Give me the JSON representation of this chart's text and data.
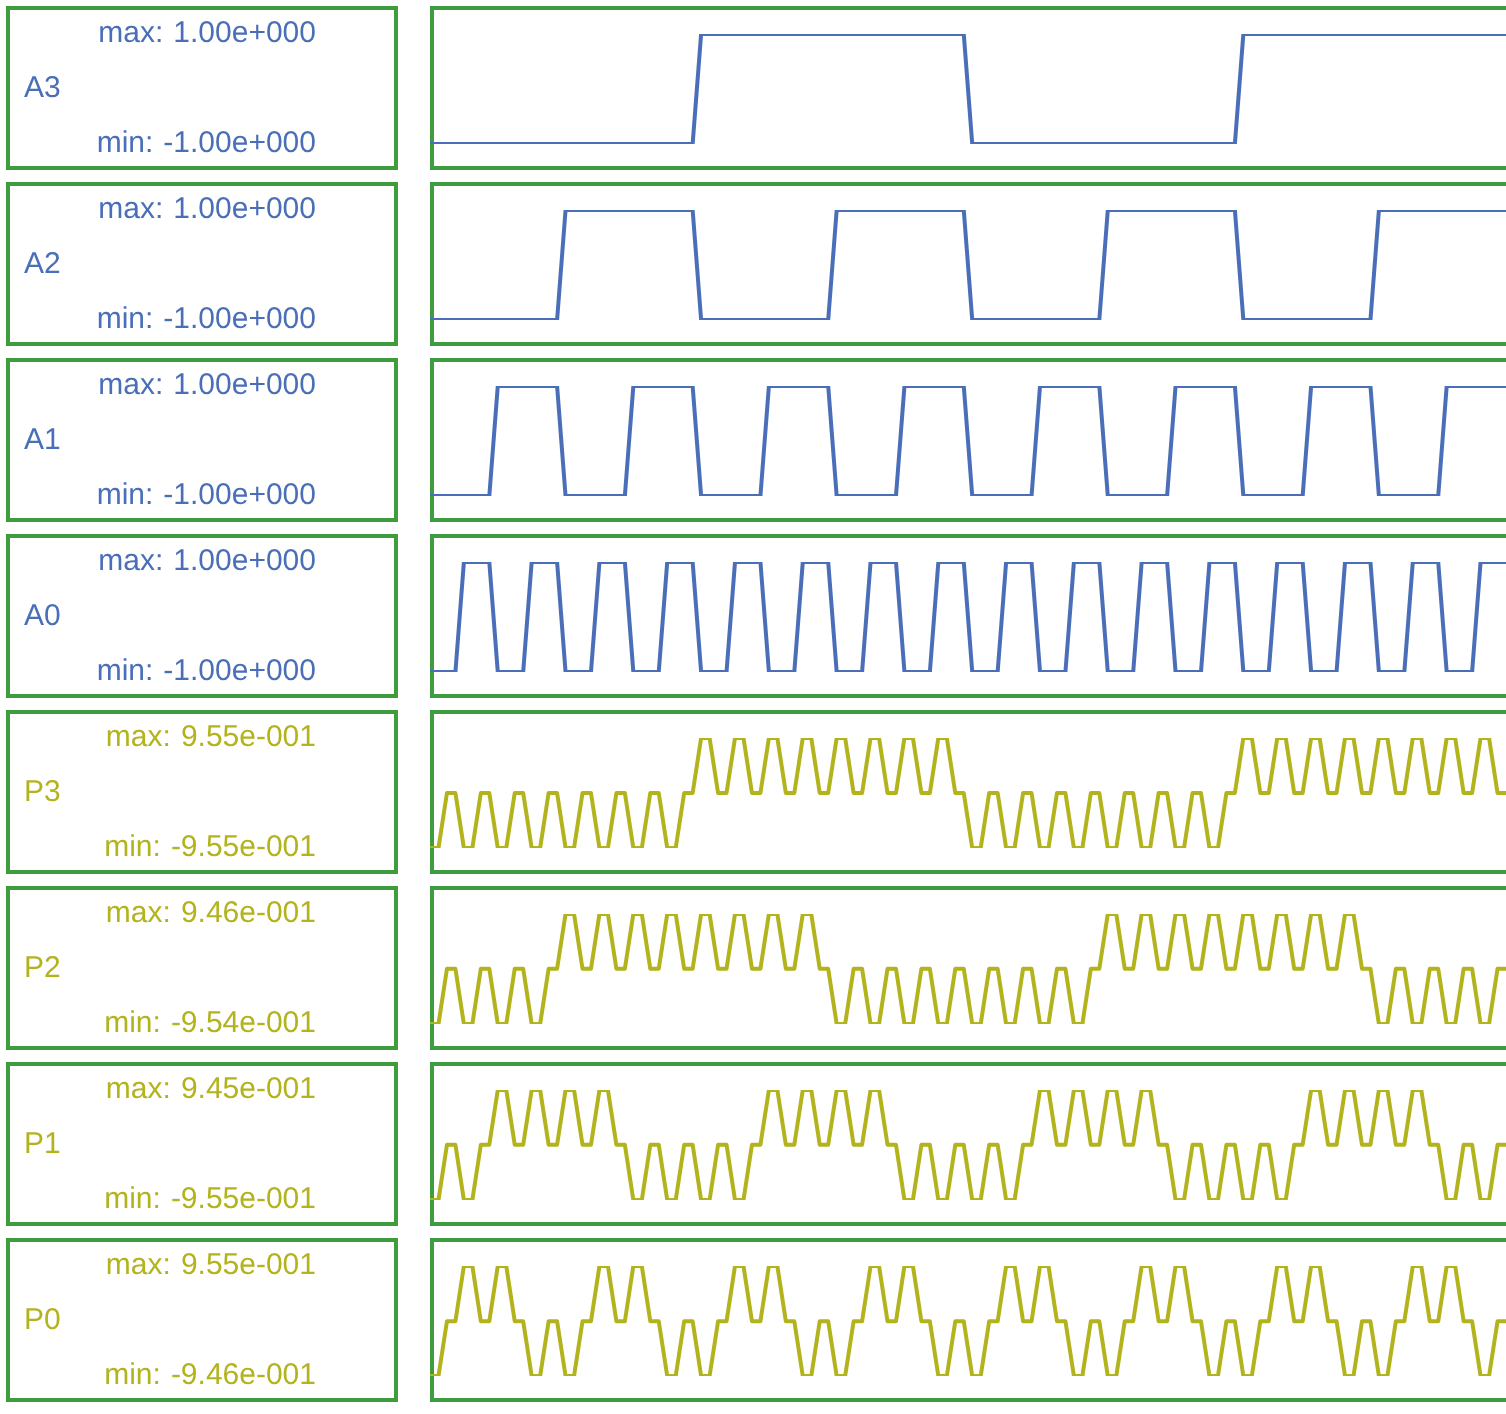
{
  "chart_data": [
    {
      "type": "line",
      "tick_labels": "y",
      "grid": false,
      "legend": false,
      "categories": [
        null,
        null,
        null,
        null,
        null,
        null,
        null,
        null,
        null,
        null,
        null,
        null,
        null,
        null,
        null,
        null,
        null,
        null,
        null,
        null,
        null,
        null,
        null,
        null,
        null,
        null,
        null,
        null,
        null,
        null,
        null,
        null,
        null,
        null,
        null,
        null,
        null,
        null,
        null,
        null,
        null,
        null,
        null,
        null,
        null,
        null,
        null,
        null,
        null,
        null,
        null,
        null,
        null,
        null,
        null,
        null,
        null,
        null,
        null,
        null,
        null,
        null,
        null,
        null,
        null,
        null,
        null,
        null,
        null,
        null,
        null,
        null,
        null,
        null,
        null,
        null,
        null,
        null,
        null,
        null,
        null,
        null,
        null,
        null,
        null,
        null,
        null,
        null,
        null,
        null,
        null,
        null,
        null,
        null,
        null,
        null,
        null,
        null,
        null,
        null,
        null,
        null,
        null,
        null,
        null,
        null,
        null,
        null,
        null,
        null,
        null,
        null,
        null,
        null,
        null,
        null,
        null,
        null,
        null,
        null,
        null,
        null,
        null,
        null,
        null,
        null,
        null,
        null
      ],
      "ylim": [
        -1,
        1
      ],
      "yticks": [
        {
          "value": 1,
          "label": "1.00e+000"
        },
        {
          "value": -1,
          "label": "-1.00e+000"
        }
      ],
      "annotations": [
        "max:",
        "min:"
      ],
      "series": [
        {
          "name": "A3",
          "color": "#4a6fb8",
          "values": [
            -1,
            -1,
            -1,
            -1,
            -1,
            -1,
            -1,
            -1,
            -1,
            -1,
            -1,
            -1,
            -1,
            -1,
            -1,
            -1,
            -1,
            -1,
            -1,
            -1,
            -1,
            -1,
            -1,
            -1,
            -1,
            -1,
            -1,
            -1,
            -1,
            -1,
            -1,
            -1,
            1,
            1,
            1,
            1,
            1,
            1,
            1,
            1,
            1,
            1,
            1,
            1,
            1,
            1,
            1,
            1,
            1,
            1,
            1,
            1,
            1,
            1,
            1,
            1,
            1,
            1,
            1,
            1,
            1,
            1,
            1,
            1,
            -1,
            -1,
            -1,
            -1,
            -1,
            -1,
            -1,
            -1,
            -1,
            -1,
            -1,
            -1,
            -1,
            -1,
            -1,
            -1,
            -1,
            -1,
            -1,
            -1,
            -1,
            -1,
            -1,
            -1,
            -1,
            -1,
            -1,
            -1,
            -1,
            -1,
            -1,
            -1,
            1,
            1,
            1,
            1,
            1,
            1,
            1,
            1,
            1,
            1,
            1,
            1,
            1,
            1,
            1,
            1,
            1,
            1,
            1,
            1,
            1,
            1,
            1,
            1,
            1,
            1,
            1,
            1,
            1,
            1,
            1,
            1
          ]
        }
      ]
    },
    {
      "type": "line",
      "tick_labels": "y",
      "grid": false,
      "legend": false,
      "categories": [
        null,
        null,
        null,
        null,
        null,
        null,
        null,
        null,
        null,
        null,
        null,
        null,
        null,
        null,
        null,
        null,
        null,
        null,
        null,
        null,
        null,
        null,
        null,
        null,
        null,
        null,
        null,
        null,
        null,
        null,
        null,
        null,
        null,
        null,
        null,
        null,
        null,
        null,
        null,
        null,
        null,
        null,
        null,
        null,
        null,
        null,
        null,
        null,
        null,
        null,
        null,
        null,
        null,
        null,
        null,
        null,
        null,
        null,
        null,
        null,
        null,
        null,
        null,
        null,
        null,
        null,
        null,
        null,
        null,
        null,
        null,
        null,
        null,
        null,
        null,
        null,
        null,
        null,
        null,
        null,
        null,
        null,
        null,
        null,
        null,
        null,
        null,
        null,
        null,
        null,
        null,
        null,
        null,
        null,
        null,
        null,
        null,
        null,
        null,
        null,
        null,
        null,
        null,
        null,
        null,
        null,
        null,
        null,
        null,
        null,
        null,
        null,
        null,
        null,
        null,
        null,
        null,
        null,
        null,
        null,
        null,
        null,
        null,
        null,
        null,
        null,
        null,
        null
      ],
      "ylim": [
        -1,
        1
      ],
      "yticks": [
        {
          "value": 1,
          "label": "1.00e+000"
        },
        {
          "value": -1,
          "label": "-1.00e+000"
        }
      ],
      "annotations": [
        "max:",
        "min:"
      ],
      "series": [
        {
          "name": "A2",
          "color": "#4a6fb8",
          "values": [
            -1,
            -1,
            -1,
            -1,
            -1,
            -1,
            -1,
            -1,
            -1,
            -1,
            -1,
            -1,
            -1,
            -1,
            -1,
            -1,
            1,
            1,
            1,
            1,
            1,
            1,
            1,
            1,
            1,
            1,
            1,
            1,
            1,
            1,
            1,
            1,
            -1,
            -1,
            -1,
            -1,
            -1,
            -1,
            -1,
            -1,
            -1,
            -1,
            -1,
            -1,
            -1,
            -1,
            -1,
            -1,
            1,
            1,
            1,
            1,
            1,
            1,
            1,
            1,
            1,
            1,
            1,
            1,
            1,
            1,
            1,
            1,
            -1,
            -1,
            -1,
            -1,
            -1,
            -1,
            -1,
            -1,
            -1,
            -1,
            -1,
            -1,
            -1,
            -1,
            -1,
            -1,
            1,
            1,
            1,
            1,
            1,
            1,
            1,
            1,
            1,
            1,
            1,
            1,
            1,
            1,
            1,
            1,
            -1,
            -1,
            -1,
            -1,
            -1,
            -1,
            -1,
            -1,
            -1,
            -1,
            -1,
            -1,
            -1,
            -1,
            -1,
            -1,
            1,
            1,
            1,
            1,
            1,
            1,
            1,
            1,
            1,
            1,
            1,
            1,
            1,
            1,
            1,
            1
          ]
        }
      ]
    },
    {
      "type": "line",
      "tick_labels": "y",
      "grid": false,
      "legend": false,
      "categories": [
        null,
        null,
        null,
        null,
        null,
        null,
        null,
        null,
        null,
        null,
        null,
        null,
        null,
        null,
        null,
        null,
        null,
        null,
        null,
        null,
        null,
        null,
        null,
        null,
        null,
        null,
        null,
        null,
        null,
        null,
        null,
        null,
        null,
        null,
        null,
        null,
        null,
        null,
        null,
        null,
        null,
        null,
        null,
        null,
        null,
        null,
        null,
        null,
        null,
        null,
        null,
        null,
        null,
        null,
        null,
        null,
        null,
        null,
        null,
        null,
        null,
        null,
        null,
        null,
        null,
        null,
        null,
        null,
        null,
        null,
        null,
        null,
        null,
        null,
        null,
        null,
        null,
        null,
        null,
        null,
        null,
        null,
        null,
        null,
        null,
        null,
        null,
        null,
        null,
        null,
        null,
        null,
        null,
        null,
        null,
        null,
        null,
        null,
        null,
        null,
        null,
        null,
        null,
        null,
        null,
        null,
        null,
        null,
        null,
        null,
        null,
        null,
        null,
        null,
        null,
        null,
        null,
        null,
        null,
        null,
        null,
        null,
        null,
        null,
        null,
        null,
        null,
        null
      ],
      "ylim": [
        -1,
        1
      ],
      "yticks": [
        {
          "value": 1,
          "label": "1.00e+000"
        },
        {
          "value": -1,
          "label": "-1.00e+000"
        }
      ],
      "annotations": [
        "max:",
        "min:"
      ],
      "series": [
        {
          "name": "A1",
          "color": "#4a6fb8",
          "values": [
            -1,
            -1,
            -1,
            -1,
            -1,
            -1,
            -1,
            -1,
            1,
            1,
            1,
            1,
            1,
            1,
            1,
            1,
            -1,
            -1,
            -1,
            -1,
            -1,
            -1,
            -1,
            -1,
            1,
            1,
            1,
            1,
            1,
            1,
            1,
            1,
            -1,
            -1,
            -1,
            -1,
            -1,
            -1,
            -1,
            -1,
            1,
            1,
            1,
            1,
            1,
            1,
            1,
            1,
            -1,
            -1,
            -1,
            -1,
            -1,
            -1,
            -1,
            -1,
            1,
            1,
            1,
            1,
            1,
            1,
            1,
            1,
            -1,
            -1,
            -1,
            -1,
            -1,
            -1,
            -1,
            -1,
            1,
            1,
            1,
            1,
            1,
            1,
            1,
            1,
            -1,
            -1,
            -1,
            -1,
            -1,
            -1,
            -1,
            -1,
            1,
            1,
            1,
            1,
            1,
            1,
            1,
            1,
            -1,
            -1,
            -1,
            -1,
            -1,
            -1,
            -1,
            -1,
            1,
            1,
            1,
            1,
            1,
            1,
            1,
            1,
            -1,
            -1,
            -1,
            -1,
            -1,
            -1,
            -1,
            -1,
            1,
            1,
            1,
            1,
            1,
            1,
            1,
            1
          ]
        }
      ]
    },
    {
      "type": "line",
      "tick_labels": "y",
      "grid": false,
      "legend": false,
      "categories": [
        null,
        null,
        null,
        null,
        null,
        null,
        null,
        null,
        null,
        null,
        null,
        null,
        null,
        null,
        null,
        null,
        null,
        null,
        null,
        null,
        null,
        null,
        null,
        null,
        null,
        null,
        null,
        null,
        null,
        null,
        null,
        null,
        null,
        null,
        null,
        null,
        null,
        null,
        null,
        null,
        null,
        null,
        null,
        null,
        null,
        null,
        null,
        null,
        null,
        null,
        null,
        null,
        null,
        null,
        null,
        null,
        null,
        null,
        null,
        null,
        null,
        null,
        null,
        null,
        null,
        null,
        null,
        null,
        null,
        null,
        null,
        null,
        null,
        null,
        null,
        null,
        null,
        null,
        null,
        null,
        null,
        null,
        null,
        null,
        null,
        null,
        null,
        null,
        null,
        null,
        null,
        null,
        null,
        null,
        null,
        null,
        null,
        null,
        null,
        null,
        null,
        null,
        null,
        null,
        null,
        null,
        null,
        null,
        null,
        null,
        null,
        null,
        null,
        null,
        null,
        null,
        null,
        null,
        null,
        null,
        null,
        null,
        null,
        null,
        null,
        null,
        null,
        null
      ],
      "ylim": [
        -1,
        1
      ],
      "yticks": [
        {
          "value": 1,
          "label": "1.00e+000"
        },
        {
          "value": -1,
          "label": "-1.00e+000"
        }
      ],
      "annotations": [
        "max:",
        "min:"
      ],
      "series": [
        {
          "name": "A0",
          "color": "#4a6fb8",
          "values": [
            -1,
            -1,
            -1,
            -1,
            1,
            1,
            1,
            1,
            -1,
            -1,
            -1,
            -1,
            1,
            1,
            1,
            1,
            -1,
            -1,
            -1,
            -1,
            1,
            1,
            1,
            1,
            -1,
            -1,
            -1,
            -1,
            1,
            1,
            1,
            1,
            -1,
            -1,
            -1,
            -1,
            1,
            1,
            1,
            1,
            -1,
            -1,
            -1,
            -1,
            1,
            1,
            1,
            1,
            -1,
            -1,
            -1,
            -1,
            1,
            1,
            1,
            1,
            -1,
            -1,
            -1,
            -1,
            1,
            1,
            1,
            1,
            -1,
            -1,
            -1,
            -1,
            1,
            1,
            1,
            1,
            -1,
            -1,
            -1,
            -1,
            1,
            1,
            1,
            1,
            -1,
            -1,
            -1,
            -1,
            1,
            1,
            1,
            1,
            -1,
            -1,
            -1,
            -1,
            1,
            1,
            1,
            1,
            -1,
            -1,
            -1,
            -1,
            1,
            1,
            1,
            1,
            -1,
            -1,
            -1,
            -1,
            1,
            1,
            1,
            1,
            -1,
            -1,
            -1,
            -1,
            1,
            1,
            1,
            1,
            -1,
            -1,
            -1,
            -1,
            1,
            1,
            1,
            1
          ]
        }
      ]
    },
    {
      "type": "line",
      "tick_labels": "y",
      "grid": false,
      "legend": false,
      "categories": [
        null,
        null,
        null,
        null,
        null,
        null,
        null,
        null,
        null,
        null,
        null,
        null,
        null,
        null,
        null,
        null,
        null,
        null,
        null,
        null,
        null,
        null,
        null,
        null,
        null,
        null,
        null,
        null,
        null,
        null,
        null,
        null,
        null,
        null,
        null,
        null,
        null,
        null,
        null,
        null,
        null,
        null,
        null,
        null,
        null,
        null,
        null,
        null,
        null,
        null,
        null,
        null,
        null,
        null,
        null,
        null,
        null,
        null,
        null,
        null,
        null,
        null,
        null,
        null,
        null,
        null,
        null,
        null,
        null,
        null,
        null,
        null,
        null,
        null,
        null,
        null,
        null,
        null,
        null,
        null,
        null,
        null,
        null,
        null,
        null,
        null,
        null,
        null,
        null,
        null,
        null,
        null,
        null,
        null,
        null,
        null,
        null,
        null,
        null,
        null,
        null,
        null,
        null,
        null,
        null,
        null,
        null,
        null,
        null,
        null,
        null,
        null,
        null,
        null,
        null,
        null,
        null,
        null,
        null,
        null,
        null,
        null,
        null,
        null,
        null,
        null,
        null,
        null
      ],
      "ylim": [
        -0.955,
        0.955
      ],
      "yticks": [
        {
          "value": 0.955,
          "label": "9.55e-001"
        },
        {
          "value": -0.955,
          "label": "-9.55e-001"
        }
      ],
      "annotations": [
        "max:",
        "min:"
      ],
      "series": [
        {
          "name": "P3",
          "color": "#b3b31e",
          "values": [
            -0.955,
            -0.955,
            0,
            0,
            -0.955,
            -0.955,
            0,
            0,
            -0.955,
            -0.955,
            0,
            0,
            -0.955,
            -0.955,
            0,
            0,
            -0.955,
            -0.955,
            0,
            0,
            -0.955,
            -0.955,
            0,
            0,
            -0.955,
            -0.955,
            0,
            0,
            -0.955,
            -0.955,
            0,
            0,
            0.955,
            0.955,
            0,
            0,
            0.955,
            0.955,
            0,
            0,
            0.955,
            0.955,
            0,
            0,
            0.955,
            0.955,
            0,
            0,
            0.955,
            0.955,
            0,
            0,
            0.955,
            0.955,
            0,
            0,
            0.955,
            0.955,
            0,
            0,
            0.955,
            0.955,
            0,
            0,
            -0.955,
            -0.955,
            0,
            0,
            -0.955,
            -0.955,
            0,
            0,
            -0.955,
            -0.955,
            0,
            0,
            -0.955,
            -0.955,
            0,
            0,
            -0.955,
            -0.955,
            0,
            0,
            -0.955,
            -0.955,
            0,
            0,
            -0.955,
            -0.955,
            0,
            0,
            -0.955,
            -0.955,
            0,
            0,
            0.955,
            0.955,
            0,
            0,
            0.955,
            0.955,
            0,
            0,
            0.955,
            0.955,
            0,
            0,
            0.955,
            0.955,
            0,
            0,
            0.955,
            0.955,
            0,
            0,
            0.955,
            0.955,
            0,
            0,
            0.955,
            0.955,
            0,
            0,
            0.955,
            0.955,
            0,
            0
          ]
        }
      ]
    },
    {
      "type": "line",
      "tick_labels": "y",
      "grid": false,
      "legend": false,
      "categories": [
        null,
        null,
        null,
        null,
        null,
        null,
        null,
        null,
        null,
        null,
        null,
        null,
        null,
        null,
        null,
        null,
        null,
        null,
        null,
        null,
        null,
        null,
        null,
        null,
        null,
        null,
        null,
        null,
        null,
        null,
        null,
        null,
        null,
        null,
        null,
        null,
        null,
        null,
        null,
        null,
        null,
        null,
        null,
        null,
        null,
        null,
        null,
        null,
        null,
        null,
        null,
        null,
        null,
        null,
        null,
        null,
        null,
        null,
        null,
        null,
        null,
        null,
        null,
        null,
        null,
        null,
        null,
        null,
        null,
        null,
        null,
        null,
        null,
        null,
        null,
        null,
        null,
        null,
        null,
        null,
        null,
        null,
        null,
        null,
        null,
        null,
        null,
        null,
        null,
        null,
        null,
        null,
        null,
        null,
        null,
        null,
        null,
        null,
        null,
        null,
        null,
        null,
        null,
        null,
        null,
        null,
        null,
        null,
        null,
        null,
        null,
        null,
        null,
        null,
        null,
        null,
        null,
        null,
        null,
        null,
        null,
        null,
        null,
        null,
        null,
        null,
        null,
        null
      ],
      "ylim": [
        -0.954,
        0.946
      ],
      "yticks": [
        {
          "value": 0.946,
          "label": "9.46e-001"
        },
        {
          "value": -0.954,
          "label": "-9.54e-001"
        }
      ],
      "annotations": [
        "max:",
        "min:"
      ],
      "series": [
        {
          "name": "P2",
          "color": "#b3b31e",
          "values": [
            -0.954,
            -0.954,
            0,
            0,
            -0.954,
            -0.954,
            0,
            0,
            -0.954,
            -0.954,
            0,
            0,
            -0.954,
            -0.954,
            0,
            0,
            0.946,
            0.946,
            0,
            0,
            0.946,
            0.946,
            0,
            0,
            0.946,
            0.946,
            0,
            0,
            0.946,
            0.946,
            0,
            0,
            0.946,
            0.946,
            0,
            0,
            0.946,
            0.946,
            0,
            0,
            0.946,
            0.946,
            0,
            0,
            0.946,
            0.946,
            0,
            0,
            -0.954,
            -0.954,
            0,
            0,
            -0.954,
            -0.954,
            0,
            0,
            -0.954,
            -0.954,
            0,
            0,
            -0.954,
            -0.954,
            0,
            0,
            -0.954,
            -0.954,
            0,
            0,
            -0.954,
            -0.954,
            0,
            0,
            -0.954,
            -0.954,
            0,
            0,
            -0.954,
            -0.954,
            0,
            0,
            0.946,
            0.946,
            0,
            0,
            0.946,
            0.946,
            0,
            0,
            0.946,
            0.946,
            0,
            0,
            0.946,
            0.946,
            0,
            0,
            0.946,
            0.946,
            0,
            0,
            0.946,
            0.946,
            0,
            0,
            0.946,
            0.946,
            0,
            0,
            0.946,
            0.946,
            0,
            0,
            -0.954,
            -0.954,
            0,
            0,
            -0.954,
            -0.954,
            0,
            0,
            -0.954,
            -0.954,
            0,
            0,
            -0.954,
            -0.954,
            0,
            0
          ]
        }
      ]
    },
    {
      "type": "line",
      "tick_labels": "y",
      "grid": false,
      "legend": false,
      "categories": [
        null,
        null,
        null,
        null,
        null,
        null,
        null,
        null,
        null,
        null,
        null,
        null,
        null,
        null,
        null,
        null,
        null,
        null,
        null,
        null,
        null,
        null,
        null,
        null,
        null,
        null,
        null,
        null,
        null,
        null,
        null,
        null,
        null,
        null,
        null,
        null,
        null,
        null,
        null,
        null,
        null,
        null,
        null,
        null,
        null,
        null,
        null,
        null,
        null,
        null,
        null,
        null,
        null,
        null,
        null,
        null,
        null,
        null,
        null,
        null,
        null,
        null,
        null,
        null,
        null,
        null,
        null,
        null,
        null,
        null,
        null,
        null,
        null,
        null,
        null,
        null,
        null,
        null,
        null,
        null,
        null,
        null,
        null,
        null,
        null,
        null,
        null,
        null,
        null,
        null,
        null,
        null,
        null,
        null,
        null,
        null,
        null,
        null,
        null,
        null,
        null,
        null,
        null,
        null,
        null,
        null,
        null,
        null,
        null,
        null,
        null,
        null,
        null,
        null,
        null,
        null,
        null,
        null,
        null,
        null,
        null,
        null,
        null,
        null,
        null,
        null,
        null,
        null
      ],
      "ylim": [
        -0.955,
        0.945
      ],
      "yticks": [
        {
          "value": 0.945,
          "label": "9.45e-001"
        },
        {
          "value": -0.955,
          "label": "-9.55e-001"
        }
      ],
      "annotations": [
        "max:",
        "min:"
      ],
      "series": [
        {
          "name": "P1",
          "color": "#b3b31e",
          "values": [
            -0.955,
            -0.955,
            0,
            0,
            -0.955,
            -0.955,
            0,
            0,
            0.945,
            0.945,
            0,
            0,
            0.945,
            0.945,
            0,
            0,
            0.945,
            0.945,
            0,
            0,
            0.945,
            0.945,
            0,
            0,
            -0.955,
            -0.955,
            0,
            0,
            -0.955,
            -0.955,
            0,
            0,
            -0.955,
            -0.955,
            0,
            0,
            -0.955,
            -0.955,
            0,
            0,
            0.945,
            0.945,
            0,
            0,
            0.945,
            0.945,
            0,
            0,
            0.945,
            0.945,
            0,
            0,
            0.945,
            0.945,
            0,
            0,
            -0.955,
            -0.955,
            0,
            0,
            -0.955,
            -0.955,
            0,
            0,
            -0.955,
            -0.955,
            0,
            0,
            -0.955,
            -0.955,
            0,
            0,
            0.945,
            0.945,
            0,
            0,
            0.945,
            0.945,
            0,
            0,
            0.945,
            0.945,
            0,
            0,
            0.945,
            0.945,
            0,
            0,
            -0.955,
            -0.955,
            0,
            0,
            -0.955,
            -0.955,
            0,
            0,
            -0.955,
            -0.955,
            0,
            0,
            -0.955,
            -0.955,
            0,
            0,
            0.945,
            0.945,
            0,
            0,
            0.945,
            0.945,
            0,
            0,
            0.945,
            0.945,
            0,
            0,
            0.945,
            0.945,
            0,
            0,
            -0.955,
            -0.955,
            0,
            0,
            -0.955,
            -0.955,
            0,
            0
          ]
        }
      ]
    },
    {
      "type": "line",
      "tick_labels": "y",
      "grid": false,
      "legend": false,
      "categories": [
        null,
        null,
        null,
        null,
        null,
        null,
        null,
        null,
        null,
        null,
        null,
        null,
        null,
        null,
        null,
        null,
        null,
        null,
        null,
        null,
        null,
        null,
        null,
        null,
        null,
        null,
        null,
        null,
        null,
        null,
        null,
        null,
        null,
        null,
        null,
        null,
        null,
        null,
        null,
        null,
        null,
        null,
        null,
        null,
        null,
        null,
        null,
        null,
        null,
        null,
        null,
        null,
        null,
        null,
        null,
        null,
        null,
        null,
        null,
        null,
        null,
        null,
        null,
        null,
        null,
        null,
        null,
        null,
        null,
        null,
        null,
        null,
        null,
        null,
        null,
        null,
        null,
        null,
        null,
        null,
        null,
        null,
        null,
        null,
        null,
        null,
        null,
        null,
        null,
        null,
        null,
        null,
        null,
        null,
        null,
        null,
        null,
        null,
        null,
        null,
        null,
        null,
        null,
        null,
        null,
        null,
        null,
        null,
        null,
        null,
        null,
        null,
        null,
        null,
        null,
        null,
        null,
        null,
        null,
        null,
        null,
        null,
        null,
        null,
        null,
        null,
        null,
        null
      ],
      "ylim": [
        -0.946,
        0.955
      ],
      "yticks": [
        {
          "value": 0.955,
          "label": "9.55e-001"
        },
        {
          "value": -0.946,
          "label": "-9.46e-001"
        }
      ],
      "annotations": [
        "max:",
        "min:"
      ],
      "series": [
        {
          "name": "P0",
          "color": "#b3b31e",
          "values": [
            -0.946,
            -0.946,
            0,
            0,
            0.955,
            0.955,
            0,
            0,
            0.955,
            0.955,
            0,
            0,
            -0.946,
            -0.946,
            0,
            0,
            -0.946,
            -0.946,
            0,
            0,
            0.955,
            0.955,
            0,
            0,
            0.955,
            0.955,
            0,
            0,
            -0.946,
            -0.946,
            0,
            0,
            -0.946,
            -0.946,
            0,
            0,
            0.955,
            0.955,
            0,
            0,
            0.955,
            0.955,
            0,
            0,
            -0.946,
            -0.946,
            0,
            0,
            -0.946,
            -0.946,
            0,
            0,
            0.955,
            0.955,
            0,
            0,
            0.955,
            0.955,
            0,
            0,
            -0.946,
            -0.946,
            0,
            0,
            -0.946,
            -0.946,
            0,
            0,
            0.955,
            0.955,
            0,
            0,
            0.955,
            0.955,
            0,
            0,
            -0.946,
            -0.946,
            0,
            0,
            -0.946,
            -0.946,
            0,
            0,
            0.955,
            0.955,
            0,
            0,
            0.955,
            0.955,
            0,
            0,
            -0.946,
            -0.946,
            0,
            0,
            -0.946,
            -0.946,
            0,
            0,
            0.955,
            0.955,
            0,
            0,
            0.955,
            0.955,
            0,
            0,
            -0.946,
            -0.946,
            0,
            0,
            -0.946,
            -0.946,
            0,
            0,
            0.955,
            0.955,
            0,
            0,
            0.955,
            0.955,
            0,
            0,
            -0.946,
            -0.946,
            0,
            0
          ]
        }
      ]
    }
  ]
}
